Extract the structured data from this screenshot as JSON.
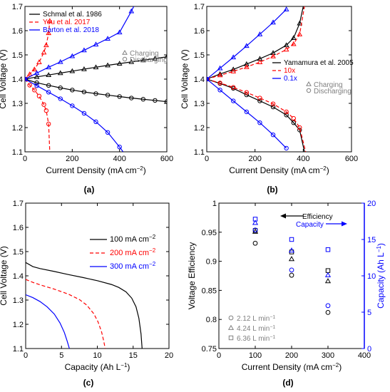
{
  "colors": {
    "black": "#000000",
    "red": "#ff0000",
    "blue": "#0000ff",
    "gray": "#808080"
  },
  "chart_data": [
    {
      "id": "a",
      "panel_label": "(a)",
      "type": "line",
      "xlabel": "Current Density (mA cm",
      "xlabel_sup": "−2",
      "xlabel_tail": ")",
      "ylabel": "Cell Voltage (V)",
      "xlim": [
        0,
        600
      ],
      "ylim": [
        1.1,
        1.7
      ],
      "xticks": [
        0,
        200,
        400,
        600
      ],
      "yticks": [
        1.1,
        1.2,
        1.3,
        1.4,
        1.5,
        1.6,
        1.7
      ],
      "ytick_labels": [
        "1.1",
        "1.2",
        "1.3",
        "1.4",
        "1.5",
        "1.6",
        "1.7"
      ],
      "legend": {
        "placement": "top-left",
        "entries": [
          {
            "label": "Schmal et al. 1986",
            "color": "#000000",
            "dash": "solid"
          },
          {
            "label": "You et al. 2017",
            "color": "#ff0000",
            "dash": "dashed"
          },
          {
            "label": "Barton et al. 2018",
            "color": "#0000ff",
            "dash": "solid"
          }
        ]
      },
      "marker_legend": {
        "placement": "right",
        "entries": [
          {
            "label": "Charging",
            "marker": "triangle"
          },
          {
            "label": "Discharging",
            "marker": "circle"
          }
        ]
      },
      "series": [
        {
          "name": "Schmal et al. 1986",
          "mode": "Charging",
          "color": "#000000",
          "dash": "solid",
          "marker": "triangle",
          "x": [
            0,
            50,
            100,
            150,
            200,
            250,
            300,
            350,
            400,
            450,
            500,
            550,
            600
          ],
          "y": [
            1.4,
            1.409,
            1.417,
            1.425,
            1.433,
            1.441,
            1.449,
            1.457,
            1.464,
            1.471,
            1.478,
            1.485,
            1.492
          ]
        },
        {
          "name": "Schmal et al. 1986",
          "mode": "Discharging",
          "color": "#000000",
          "dash": "solid",
          "marker": "circle",
          "x": [
            0,
            50,
            100,
            150,
            200,
            250,
            300,
            350,
            400,
            450,
            500,
            550,
            600
          ],
          "y": [
            1.4,
            1.385,
            1.374,
            1.364,
            1.355,
            1.347,
            1.34,
            1.334,
            1.328,
            1.322,
            1.317,
            1.312,
            1.307
          ]
        },
        {
          "name": "You et al. 2017",
          "mode": "Charging",
          "color": "#ff0000",
          "dash": "dashed",
          "marker": "triangle",
          "x": [
            0,
            20,
            40,
            60,
            80,
            90,
            100,
            105
          ],
          "y": [
            1.4,
            1.42,
            1.44,
            1.47,
            1.51,
            1.54,
            1.59,
            1.64
          ]
        },
        {
          "name": "You et al. 2017",
          "mode": "Discharging",
          "color": "#ff0000",
          "dash": "dashed",
          "marker": "circle",
          "x": [
            0,
            20,
            40,
            60,
            80,
            90,
            100,
            105
          ],
          "y": [
            1.4,
            1.375,
            1.355,
            1.33,
            1.295,
            1.27,
            1.215,
            1.1
          ]
        },
        {
          "name": "Barton et al. 2018",
          "mode": "Charging",
          "color": "#0000ff",
          "dash": "solid",
          "marker": "triangle",
          "x": [
            0,
            50,
            100,
            150,
            200,
            250,
            300,
            350,
            400,
            450,
            460
          ],
          "y": [
            1.4,
            1.425,
            1.449,
            1.471,
            1.495,
            1.519,
            1.543,
            1.567,
            1.593,
            1.68,
            1.7
          ]
        },
        {
          "name": "Barton et al. 2018",
          "mode": "Discharging",
          "color": "#0000ff",
          "dash": "solid",
          "marker": "circle",
          "x": [
            0,
            50,
            100,
            150,
            200,
            250,
            300,
            350,
            400,
            415
          ],
          "y": [
            1.4,
            1.373,
            1.346,
            1.319,
            1.29,
            1.259,
            1.224,
            1.18,
            1.12,
            1.1
          ]
        }
      ]
    },
    {
      "id": "b",
      "panel_label": "(b)",
      "type": "line",
      "xlabel": "Current Density (mA cm",
      "xlabel_sup": "−2",
      "xlabel_tail": ")",
      "ylabel": "Cell Voltage (V)",
      "xlim": [
        0,
        600
      ],
      "ylim": [
        1.1,
        1.7
      ],
      "xticks": [
        0,
        200,
        400,
        600
      ],
      "yticks": [
        1.1,
        1.2,
        1.3,
        1.4,
        1.5,
        1.6,
        1.7
      ],
      "ytick_labels": [
        "1.1",
        "1.2",
        "1.3",
        "1.4",
        "1.5",
        "1.6",
        "1.7"
      ],
      "legend": {
        "placement": "right",
        "entries": [
          {
            "label": "Yamamura et al. 2005",
            "color": "#000000",
            "dash": "solid"
          },
          {
            "label": "10x",
            "color": "#ff0000",
            "dash": "dashed"
          },
          {
            "label": "0.1x",
            "color": "#0000ff",
            "dash": "solid"
          }
        ]
      },
      "marker_legend": {
        "placement": "right",
        "entries": [
          {
            "label": "Charging",
            "marker": "triangle"
          },
          {
            "label": "Discharging",
            "marker": "circle"
          }
        ]
      },
      "series": [
        {
          "name": "Yamamura et al. 2005",
          "mode": "Charging",
          "color": "#000000",
          "dash": "solid",
          "marker": "triangle",
          "x": [
            0,
            55,
            110,
            165,
            220,
            275,
            330,
            360,
            385,
            400
          ],
          "y": [
            1.4,
            1.421,
            1.44,
            1.462,
            1.484,
            1.508,
            1.54,
            1.57,
            1.63,
            1.7
          ]
        },
        {
          "name": "Yamamura et al. 2005",
          "mode": "Discharging",
          "color": "#000000",
          "dash": "solid",
          "marker": "circle",
          "x": [
            0,
            55,
            110,
            165,
            220,
            275,
            330,
            360,
            385,
            405
          ],
          "y": [
            1.4,
            1.382,
            1.362,
            1.335,
            1.31,
            1.285,
            1.252,
            1.22,
            1.19,
            1.1
          ]
        },
        {
          "name": "10x",
          "mode": "Charging",
          "color": "#ff0000",
          "dash": "dashed",
          "marker": "triangle",
          "x": [
            0,
            55,
            110,
            165,
            220,
            275,
            330,
            360,
            385,
            405
          ],
          "y": [
            1.4,
            1.416,
            1.432,
            1.45,
            1.47,
            1.494,
            1.522,
            1.545,
            1.585,
            1.7
          ]
        },
        {
          "name": "10x",
          "mode": "Discharging",
          "color": "#ff0000",
          "dash": "dashed",
          "marker": "circle",
          "x": [
            0,
            55,
            110,
            165,
            220,
            275,
            330,
            360,
            385,
            410
          ],
          "y": [
            1.4,
            1.384,
            1.366,
            1.345,
            1.322,
            1.298,
            1.265,
            1.238,
            1.2,
            1.1
          ]
        },
        {
          "name": "0.1x",
          "mode": "Charging",
          "color": "#0000ff",
          "dash": "solid",
          "marker": "triangle",
          "x": [
            0,
            55,
            110,
            165,
            220,
            275,
            330
          ],
          "y": [
            1.4,
            1.445,
            1.49,
            1.537,
            1.585,
            1.634,
            1.688
          ]
        },
        {
          "name": "0.1x",
          "mode": "Discharging",
          "color": "#0000ff",
          "dash": "solid",
          "marker": "circle",
          "x": [
            0,
            55,
            110,
            165,
            220,
            275,
            330
          ],
          "y": [
            1.4,
            1.355,
            1.31,
            1.265,
            1.22,
            1.17,
            1.115
          ]
        }
      ]
    },
    {
      "id": "c",
      "panel_label": "(c)",
      "type": "line",
      "xlabel": "Capacity (Ah L",
      "xlabel_sup": "−1",
      "xlabel_tail": ")",
      "ylabel": "Cell Voltage (V)",
      "xlim": [
        0,
        20
      ],
      "ylim": [
        1.1,
        1.7
      ],
      "xticks": [
        0,
        5,
        10,
        15,
        20
      ],
      "yticks": [
        1.1,
        1.2,
        1.3,
        1.4,
        1.5,
        1.6,
        1.7
      ],
      "ytick_labels": [
        "1.1",
        "1.2",
        "1.3",
        "1.4",
        "1.5",
        "1.6",
        "1.7"
      ],
      "legend": {
        "placement": "top-right",
        "entries": [
          {
            "label": "100 mA cm",
            "sup": "−2",
            "color": "#000000",
            "dash": "solid"
          },
          {
            "label": "200 mA cm",
            "sup": "−2",
            "color": "#ff0000",
            "dash": "dashed"
          },
          {
            "label": "300 mA cm",
            "sup": "−2",
            "color": "#0000ff",
            "dash": "solid"
          }
        ]
      },
      "series": [
        {
          "name": "100 mA cm−2",
          "color": "#000000",
          "dash": "solid",
          "x": [
            0,
            1,
            2,
            4,
            6,
            8,
            10,
            12,
            13,
            14,
            14.8,
            15.4,
            15.8,
            16.1,
            16.25
          ],
          "y": [
            1.455,
            1.438,
            1.43,
            1.418,
            1.405,
            1.393,
            1.38,
            1.364,
            1.352,
            1.334,
            1.308,
            1.272,
            1.225,
            1.16,
            1.1
          ]
        },
        {
          "name": "200 mA cm−2",
          "color": "#ff0000",
          "dash": "dashed",
          "x": [
            0,
            1,
            2,
            4,
            6,
            7.5,
            8.5,
            9.5,
            10.1,
            10.6,
            10.9,
            11.1
          ],
          "y": [
            1.385,
            1.373,
            1.363,
            1.345,
            1.324,
            1.302,
            1.28,
            1.244,
            1.21,
            1.168,
            1.13,
            1.1
          ]
        },
        {
          "name": "300 mA cm−2",
          "color": "#0000ff",
          "dash": "solid",
          "x": [
            0,
            1,
            2,
            3,
            4,
            4.8,
            5.4,
            5.8,
            6.1
          ],
          "y": [
            1.322,
            1.31,
            1.294,
            1.272,
            1.242,
            1.205,
            1.166,
            1.13,
            1.1
          ]
        }
      ]
    },
    {
      "id": "d",
      "panel_label": "(d)",
      "type": "scatter",
      "xlabel": "Current Density (mA cm",
      "xlabel_sup": "−2",
      "xlabel_tail": ")",
      "ylabel": "Voltage Efficiency",
      "y2label": "Capacity (Ah L",
      "y2label_sup": "−1",
      "y2label_tail": ")",
      "xlim": [
        0,
        400
      ],
      "ylim": [
        0.75,
        1.0
      ],
      "y2lim": [
        0,
        20
      ],
      "xticks": [
        0,
        100,
        200,
        300,
        400
      ],
      "yticks": [
        0.75,
        0.8,
        0.85,
        0.9,
        0.95,
        1.0
      ],
      "ytick_labels": [
        "0.75",
        "0.8",
        "0.85",
        "0.9",
        "0.95",
        "1"
      ],
      "y2ticks": [
        0,
        5,
        10,
        15,
        20
      ],
      "annotations": [
        {
          "label": "Efficiency",
          "arrow": "left",
          "color": "#000000"
        },
        {
          "label": "Capacity",
          "arrow": "right",
          "color": "#0000ff"
        }
      ],
      "marker_legend": {
        "placement": "bottom-left",
        "entries": [
          {
            "label": "2.12 L min",
            "sup": "−1",
            "marker": "circle"
          },
          {
            "label": "4.24 L min",
            "sup": "−1",
            "marker": "triangle"
          },
          {
            "label": "6.36 L min",
            "sup": "−1",
            "marker": "square"
          }
        ]
      },
      "series": [
        {
          "name": "2.12 L min−1",
          "axis": "left",
          "color": "#000000",
          "marker": "circle",
          "x": [
            100,
            200,
            300
          ],
          "y": [
            0.931,
            0.876,
            0.812
          ]
        },
        {
          "name": "4.24 L min−1",
          "axis": "left",
          "color": "#000000",
          "marker": "triangle",
          "x": [
            100,
            200,
            300
          ],
          "y": [
            0.951,
            0.904,
            0.866
          ]
        },
        {
          "name": "6.36 L min−1",
          "axis": "left",
          "color": "#000000",
          "marker": "square",
          "x": [
            100,
            200,
            300
          ],
          "y": [
            0.953,
            0.916,
            0.884
          ]
        },
        {
          "name": "2.12 L min−1",
          "axis": "right",
          "color": "#0000ff",
          "marker": "circle",
          "x": [
            100,
            200,
            300
          ],
          "y": [
            16.3,
            10.8,
            5.9
          ]
        },
        {
          "name": "4.24 L min−1",
          "axis": "right",
          "color": "#0000ff",
          "marker": "triangle",
          "x": [
            100,
            200,
            300
          ],
          "y": [
            17.3,
            13.5,
            10.1
          ]
        },
        {
          "name": "6.36 L min−1",
          "axis": "right",
          "color": "#0000ff",
          "marker": "square",
          "x": [
            100,
            200,
            300
          ],
          "y": [
            17.8,
            15.0,
            13.6
          ]
        }
      ]
    }
  ]
}
